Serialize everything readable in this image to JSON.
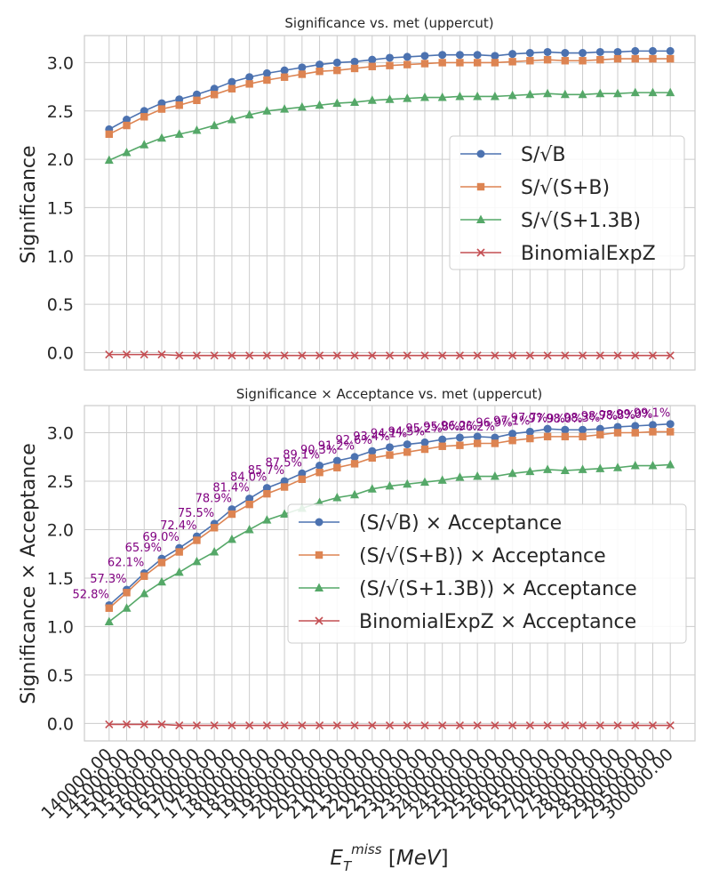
{
  "chart_data": [
    {
      "type": "line",
      "title": "Significance vs. met (uppercut)",
      "xlabel": "",
      "ylabel": "Significance",
      "ylim": [
        -0.18,
        3.28
      ],
      "yticks": [
        "0.0",
        "0.5",
        "1.0",
        "1.5",
        "2.0",
        "2.5",
        "3.0"
      ],
      "grid": true,
      "legend_position": "center-right",
      "x": [
        140000,
        145000,
        150000,
        155000,
        160000,
        165000,
        170000,
        175000,
        180000,
        185000,
        190000,
        195000,
        200000,
        205000,
        210000,
        215000,
        220000,
        225000,
        230000,
        235000,
        240000,
        245000,
        250000,
        255000,
        260000,
        265000,
        270000,
        275000,
        280000,
        285000,
        290000,
        295000,
        300000
      ],
      "series": [
        {
          "name": "S/√B",
          "marker": "circle",
          "color": "#4c72b0",
          "values": [
            2.31,
            2.41,
            2.5,
            2.58,
            2.62,
            2.67,
            2.73,
            2.8,
            2.85,
            2.89,
            2.92,
            2.95,
            2.98,
            3.0,
            3.01,
            3.03,
            3.05,
            3.06,
            3.07,
            3.08,
            3.08,
            3.08,
            3.07,
            3.09,
            3.1,
            3.11,
            3.1,
            3.1,
            3.11,
            3.11,
            3.12,
            3.12,
            3.12
          ]
        },
        {
          "name": "S/√(S+B)",
          "marker": "square",
          "color": "#dd8452",
          "values": [
            2.26,
            2.35,
            2.44,
            2.52,
            2.56,
            2.61,
            2.67,
            2.73,
            2.78,
            2.82,
            2.85,
            2.88,
            2.91,
            2.92,
            2.94,
            2.96,
            2.97,
            2.98,
            2.99,
            3.0,
            3.0,
            3.0,
            3.0,
            3.01,
            3.02,
            3.03,
            3.02,
            3.02,
            3.03,
            3.04,
            3.04,
            3.04,
            3.04
          ]
        },
        {
          "name": "S/√(S+1.3B)",
          "marker": "triangle",
          "color": "#55a868",
          "values": [
            1.99,
            2.07,
            2.15,
            2.22,
            2.26,
            2.3,
            2.35,
            2.41,
            2.46,
            2.5,
            2.52,
            2.54,
            2.56,
            2.58,
            2.59,
            2.61,
            2.62,
            2.63,
            2.64,
            2.64,
            2.65,
            2.65,
            2.65,
            2.66,
            2.67,
            2.68,
            2.67,
            2.67,
            2.68,
            2.68,
            2.69,
            2.69,
            2.69
          ]
        },
        {
          "name": "BinomialExpZ",
          "marker": "x",
          "color": "#c44e52",
          "values": [
            -0.02,
            -0.02,
            -0.02,
            -0.02,
            -0.03,
            -0.03,
            -0.03,
            -0.03,
            -0.03,
            -0.03,
            -0.03,
            -0.03,
            -0.03,
            -0.03,
            -0.03,
            -0.03,
            -0.03,
            -0.03,
            -0.03,
            -0.03,
            -0.03,
            -0.03,
            -0.03,
            -0.03,
            -0.03,
            -0.03,
            -0.03,
            -0.03,
            -0.03,
            -0.03,
            -0.03,
            -0.03,
            -0.03
          ]
        }
      ]
    },
    {
      "type": "line",
      "title": "Significance × Acceptance vs. met (uppercut)",
      "xlabel": "E_T^miss [MeV]",
      "ylabel": "Significance × Acceptance",
      "ylim": [
        -0.18,
        3.28
      ],
      "yticks": [
        "0.0",
        "0.5",
        "1.0",
        "1.5",
        "2.0",
        "2.5",
        "3.0"
      ],
      "grid": true,
      "legend_position": "center-right",
      "x": [
        140000,
        145000,
        150000,
        155000,
        160000,
        165000,
        170000,
        175000,
        180000,
        185000,
        190000,
        195000,
        200000,
        205000,
        210000,
        215000,
        220000,
        225000,
        230000,
        235000,
        240000,
        245000,
        250000,
        255000,
        260000,
        265000,
        270000,
        275000,
        280000,
        285000,
        290000,
        295000,
        300000
      ],
      "x_tick_labels": [
        "140000.00",
        "145000.00",
        "150000.00",
        "155000.00",
        "160000.00",
        "165000.00",
        "170000.00",
        "175000.00",
        "180000.00",
        "185000.00",
        "190000.00",
        "195000.00",
        "200000.00",
        "205000.00",
        "210000.00",
        "215000.00",
        "220000.00",
        "225000.00",
        "230000.00",
        "235000.00",
        "240000.00",
        "245000.00",
        "250000.00",
        "255000.00",
        "260000.00",
        "265000.00",
        "270000.00",
        "275000.00",
        "280000.00",
        "285000.00",
        "290000.00",
        "295000.00",
        "300000.00"
      ],
      "annotations": [
        "52.8%",
        "57.3%",
        "62.1%",
        "65.9%",
        "69.0%",
        "72.4%",
        "75.5%",
        "78.9%",
        "81.4%",
        "84.0%",
        "85.7%",
        "87.5%",
        "89.1%",
        "90.3%",
        "91.2%",
        "92.6%",
        "93.4%",
        "94.1%",
        "94.5%",
        "95.2%",
        "95.8%",
        "96.2%",
        "96.2%",
        "96.9%",
        "97.1%",
        "97.7%",
        "97.9%",
        "98.0%",
        "98.3%",
        "98.7%",
        "98.8%",
        "99.0%",
        "99.1%"
      ],
      "annotation_color": "#800080",
      "series": [
        {
          "name": "(S/√B) × Acceptance",
          "marker": "circle",
          "color": "#4c72b0",
          "values": [
            1.22,
            1.38,
            1.55,
            1.7,
            1.81,
            1.93,
            2.06,
            2.21,
            2.32,
            2.43,
            2.5,
            2.58,
            2.66,
            2.71,
            2.75,
            2.81,
            2.85,
            2.88,
            2.9,
            2.93,
            2.95,
            2.96,
            2.95,
            2.99,
            3.01,
            3.04,
            3.03,
            3.03,
            3.04,
            3.06,
            3.07,
            3.08,
            3.09
          ]
        },
        {
          "name": "(S/√(S+B)) × Acceptance",
          "marker": "square",
          "color": "#dd8452",
          "values": [
            1.19,
            1.35,
            1.52,
            1.66,
            1.77,
            1.89,
            2.02,
            2.16,
            2.26,
            2.37,
            2.44,
            2.52,
            2.59,
            2.64,
            2.68,
            2.74,
            2.77,
            2.8,
            2.83,
            2.86,
            2.87,
            2.89,
            2.89,
            2.92,
            2.94,
            2.96,
            2.96,
            2.96,
            2.98,
            3.0,
            3.0,
            3.01,
            3.01
          ]
        },
        {
          "name": "(S/√(S+1.3B)) × Acceptance",
          "marker": "triangle",
          "color": "#55a868",
          "values": [
            1.05,
            1.19,
            1.34,
            1.46,
            1.56,
            1.67,
            1.77,
            1.9,
            2.0,
            2.1,
            2.16,
            2.22,
            2.28,
            2.33,
            2.36,
            2.42,
            2.45,
            2.47,
            2.49,
            2.51,
            2.54,
            2.55,
            2.55,
            2.58,
            2.6,
            2.62,
            2.61,
            2.62,
            2.63,
            2.64,
            2.66,
            2.66,
            2.67
          ]
        },
        {
          "name": "BinomialExpZ × Acceptance",
          "marker": "x",
          "color": "#c44e52",
          "values": [
            -0.01,
            -0.01,
            -0.01,
            -0.01,
            -0.02,
            -0.02,
            -0.02,
            -0.02,
            -0.02,
            -0.02,
            -0.02,
            -0.02,
            -0.02,
            -0.02,
            -0.02,
            -0.02,
            -0.02,
            -0.02,
            -0.02,
            -0.02,
            -0.02,
            -0.02,
            -0.02,
            -0.02,
            -0.02,
            -0.02,
            -0.02,
            -0.02,
            -0.02,
            -0.02,
            -0.02,
            -0.02,
            -0.02
          ]
        }
      ]
    }
  ]
}
